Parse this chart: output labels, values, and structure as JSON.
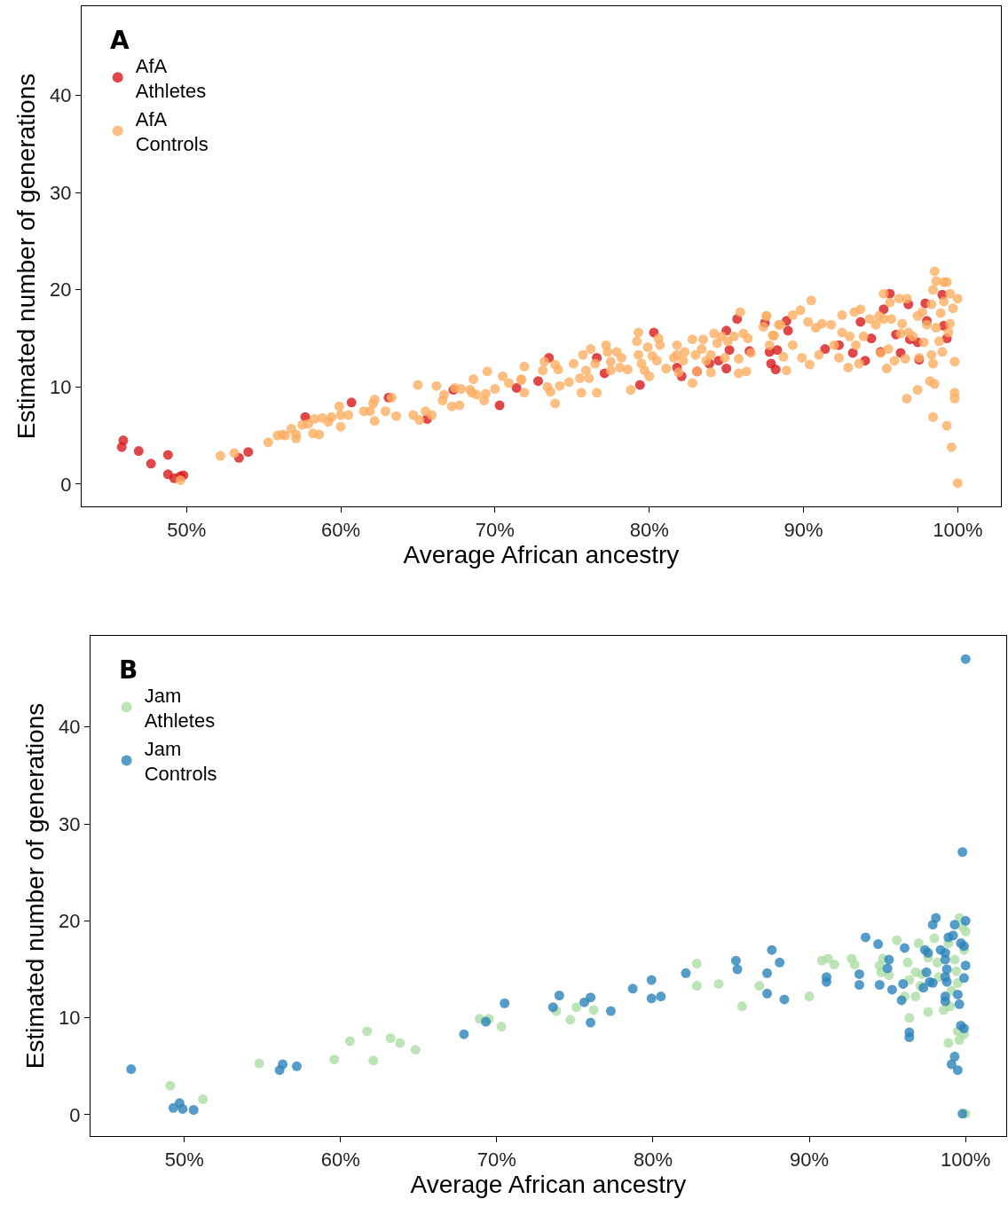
{
  "chart_data": [
    {
      "type": "scatter",
      "title": "A",
      "xlabel": "Average African ancestry",
      "ylabel": "Estimated number of generations",
      "legend": "top left",
      "marker": "circle",
      "xlim": [
        43.2,
        102.8
      ],
      "ylim": [
        -2.3,
        49.2
      ],
      "xticks": [
        {
          "value": 50,
          "label": "50%"
        },
        {
          "value": 60,
          "label": "60%"
        },
        {
          "value": 70,
          "label": "70%"
        },
        {
          "value": 80,
          "label": "80%"
        },
        {
          "value": 90,
          "label": "90%"
        },
        {
          "value": 100,
          "label": "100%"
        }
      ],
      "yticks": [
        0,
        10,
        20,
        30,
        40
      ],
      "series": [
        {
          "name": "AfA Athletes",
          "color": "#d7191c",
          "x": [
            45.9,
            45.8,
            46.9,
            47.7,
            48.8,
            48.8,
            49.2,
            49.6,
            49.8,
            53.4,
            54.0,
            57.7,
            60.7,
            63.1,
            65.6,
            67.3,
            70.3,
            71.4,
            73.5,
            72.8,
            76.6,
            77.1,
            79.4,
            80.3,
            81.8,
            82.1,
            83.1,
            83.9,
            84.5,
            85.0,
            85.0,
            85.2,
            85.7,
            86.5,
            87.5,
            87.8,
            87.9,
            88.2,
            88.3,
            88.9,
            89.0,
            91.4,
            92.3,
            93.2,
            93.7,
            94.0,
            94.4,
            95.0,
            95.2,
            95.6,
            96.0,
            96.3,
            96.8,
            96.9,
            97.4,
            97.5,
            97.9,
            98.0,
            99.0,
            99.1,
            99.3
          ],
          "values": [
            4.5,
            3.8,
            3.4,
            2.1,
            3.0,
            1.0,
            0.6,
            0.8,
            0.9,
            2.7,
            3.3,
            6.9,
            8.4,
            8.9,
            6.7,
            9.7,
            8.1,
            9.9,
            13.0,
            10.6,
            13.0,
            11.4,
            10.2,
            15.6,
            12.0,
            11.1,
            11.6,
            12.4,
            12.7,
            15.8,
            11.9,
            13.8,
            17.0,
            13.7,
            16.6,
            13.6,
            12.4,
            11.8,
            13.8,
            16.8,
            15.8,
            13.9,
            14.3,
            13.5,
            16.7,
            12.7,
            15.0,
            13.6,
            18.0,
            19.6,
            15.4,
            13.5,
            18.5,
            14.9,
            14.6,
            12.8,
            18.6,
            16.8,
            19.5,
            16.3,
            15.0
          ]
        },
        {
          "name": "AfA Controls",
          "color": "#fdae61",
          "x": [
            49.6,
            52.2,
            53.1,
            55.3,
            55.9,
            56.2,
            56.4,
            56.8,
            57.1,
            57.1,
            57.5,
            57.9,
            58.2,
            58.6,
            58.3,
            58.8,
            59.2,
            59.4,
            59.9,
            60.0,
            60.0,
            60.5,
            61.5,
            61.9,
            62.1,
            62.2,
            62.2,
            62.9,
            63.3,
            63.6,
            64.7,
            65.0,
            65.1,
            65.5,
            65.9,
            66.2,
            66.6,
            66.7,
            67.2,
            67.7,
            67.4,
            67.8,
            68.4,
            68.5,
            68.6,
            68.8,
            69.3,
            69.4,
            69.5,
            70.0,
            70.5,
            70.9,
            71.7,
            71.9,
            71.9,
            71.7,
            73.2,
            73.1,
            73.9,
            74.1,
            73.4,
            73.6,
            73.9,
            74.2,
            74.8,
            75.1,
            75.5,
            75.6,
            75.7,
            75.9,
            76.1,
            76.2,
            76.5,
            76.6,
            77.2,
            77.3,
            77.5,
            77.5,
            77.9,
            78.1,
            78.2,
            78.6,
            78.8,
            79.2,
            79.3,
            79.3,
            79.5,
            79.7,
            79.9,
            80.0,
            80.2,
            80.5,
            80.6,
            80.7,
            81.1,
            81.6,
            81.8,
            81.8,
            81.9,
            82.2,
            82.3,
            82.8,
            82.8,
            83.0,
            83.1,
            83.4,
            83.5,
            83.7,
            84.0,
            84.0,
            84.2,
            84.4,
            84.7,
            84.9,
            85.1,
            85.5,
            85.8,
            85.8,
            85.9,
            86.1,
            86.3,
            86.4,
            86.6,
            87.4,
            87.6,
            87.8,
            88.1,
            88.4,
            90.5,
            87.6,
            88.5,
            89.3,
            89.8,
            88.0,
            88.7,
            88.9,
            90.4,
            89.3,
            89.9,
            90.3,
            90.8,
            91.2,
            91.0,
            91.8,
            92.0,
            92.3,
            92.5,
            92.5,
            92.9,
            93.0,
            93.3,
            93.4,
            93.7,
            93.6,
            93.9,
            94.3,
            94.7,
            94.9,
            95.0,
            95.2,
            95.2,
            95.4,
            95.5,
            95.6,
            95.7,
            95.9,
            96.2,
            96.3,
            96.4,
            96.6,
            96.7,
            96.7,
            96.8,
            97.1,
            97.4,
            97.4,
            97.5,
            97.7,
            97.8,
            98.0,
            98.2,
            98.3,
            98.3,
            98.4,
            98.4,
            98.4,
            98.5,
            98.5,
            98.6,
            98.6,
            98.8,
            98.9,
            99.0,
            99.1,
            99.1,
            99.3,
            99.3,
            99.4,
            99.5,
            99.5,
            99.6,
            99.7,
            99.8,
            99.8,
            99.8,
            100.0,
            100.0
          ],
          "values": [
            0.4,
            2.9,
            3.2,
            4.3,
            5.0,
            5.1,
            5.0,
            5.7,
            5.1,
            4.7,
            6.1,
            6.2,
            5.2,
            5.1,
            6.7,
            6.8,
            6.4,
            6.9,
            8.0,
            7.1,
            5.9,
            7.1,
            7.5,
            7.5,
            8.3,
            8.7,
            6.5,
            7.5,
            8.9,
            7.0,
            7.1,
            10.2,
            6.6,
            7.5,
            7.1,
            10.1,
            8.6,
            9.2,
            8.0,
            8.1,
            9.9,
            9.8,
            9.7,
            9.4,
            10.8,
            9.2,
            8.6,
            9.3,
            11.6,
            9.8,
            11.1,
            10.4,
            10.7,
            12.1,
            9.4,
            10.8,
            12.6,
            11.7,
            12.3,
            11.8,
            10.0,
            9.5,
            8.3,
            10.1,
            10.5,
            12.4,
            10.9,
            9.4,
            13.3,
            11.7,
            10.9,
            13.9,
            12.4,
            9.4,
            14.3,
            13.6,
            12.6,
            11.7,
            13.6,
            12.0,
            13.0,
            11.8,
            9.7,
            14.7,
            15.6,
            13.3,
            12.4,
            11.7,
            14.1,
            11.1,
            13.2,
            12.7,
            15.0,
            14.3,
            11.9,
            13.0,
            14.3,
            13.3,
            11.5,
            12.7,
            13.6,
            14.9,
            10.4,
            13.3,
            11.6,
            13.9,
            14.9,
            12.7,
            13.3,
            11.5,
            15.5,
            14.5,
            15.2,
            13.0,
            14.7,
            15.2,
            11.4,
            12.9,
            17.7,
            15.5,
            11.6,
            15.0,
            13.5,
            16.2,
            17.3,
            14.3,
            15.3,
            16.4,
            18.9,
            17.3,
            16.4,
            17.4,
            17.9,
            15.3,
            13.1,
            11.7,
            12.3,
            14.3,
            13.0,
            16.7,
            16.1,
            16.5,
            13.3,
            16.4,
            14.3,
            13.0,
            17.4,
            15.6,
            12.0,
            15.2,
            17.7,
            14.3,
            18.0,
            12.4,
            15.2,
            17.0,
            16.4,
            17.3,
            13.5,
            19.6,
            17.0,
            11.9,
            13.9,
            18.7,
            17.0,
            12.7,
            19.1,
            15.5,
            16.5,
            12.9,
            19.1,
            8.8,
            15.6,
            15.2,
            17.3,
            9.7,
            13.0,
            17.7,
            14.6,
            16.4,
            10.6,
            13.3,
            18.5,
            6.9,
            20.0,
            12.4,
            10.3,
            21.9,
            20.9,
            16.1,
            14.7,
            17.6,
            13.6,
            20.8,
            18.8,
            20.8,
            6.0,
            15.6,
            19.6,
            16.5,
            3.8,
            18.1,
            9.4,
            8.8,
            12.6,
            19.1,
            0.1
          ]
        }
      ]
    },
    {
      "type": "scatter",
      "title": "B",
      "xlabel": "Average African ancestry",
      "ylabel": "Estimated number of generations",
      "legend": "top left",
      "marker": "circle",
      "xlim": [
        44.0,
        102.6
      ],
      "ylim": [
        -2.2,
        49.4
      ],
      "xticks": [
        {
          "value": 50,
          "label": "50%"
        },
        {
          "value": 60,
          "label": "60%"
        },
        {
          "value": 70,
          "label": "70%"
        },
        {
          "value": 80,
          "label": "80%"
        },
        {
          "value": 90,
          "label": "90%"
        },
        {
          "value": 100,
          "label": "100%"
        }
      ],
      "yticks": [
        0,
        10,
        20,
        30,
        40
      ],
      "series": [
        {
          "name": "Jam Athletes",
          "color": "#abdda4",
          "x": [
            49.1,
            51.2,
            54.8,
            59.6,
            60.6,
            61.7,
            62.1,
            63.2,
            63.8,
            64.8,
            68.9,
            69.5,
            70.3,
            73.8,
            74.7,
            75.1,
            76.2,
            82.8,
            82.8,
            84.2,
            85.7,
            86.8,
            90.0,
            90.8,
            91.2,
            91.6,
            92.7,
            92.9,
            95.6,
            94.7,
            94.5,
            94.6,
            95.1,
            96.3,
            96.4,
            96.1,
            96.8,
            96.4,
            96.8,
            97.0,
            97.2,
            97.1,
            97.6,
            98.0,
            97.6,
            98.2,
            98.3,
            98.6,
            98.9,
            99.0,
            98.9,
            99.1,
            99.3,
            99.4,
            99.5,
            99.5,
            99.6,
            99.6,
            99.8,
            100.0,
            99.9,
            99.9,
            100.0
          ],
          "values": [
            3.0,
            1.6,
            5.3,
            5.7,
            7.6,
            8.6,
            5.6,
            7.9,
            7.4,
            6.7,
            9.9,
            9.9,
            9.1,
            10.7,
            9.8,
            11.1,
            10.8,
            15.6,
            13.3,
            13.5,
            11.2,
            13.3,
            12.2,
            15.9,
            16.1,
            15.5,
            16.1,
            15.5,
            18.0,
            16.1,
            15.4,
            14.7,
            14.4,
            15.7,
            13.9,
            12.2,
            12.2,
            10.0,
            14.7,
            17.7,
            14.5,
            13.3,
            16.2,
            18.2,
            10.6,
            15.7,
            14.2,
            10.8,
            17.7,
            11.2,
            7.4,
            12.8,
            16.0,
            14.8,
            13.6,
            8.6,
            7.7,
            20.3,
            19.4,
            18.9,
            17.0,
            8.3,
            0.1
          ]
        },
        {
          "name": "Jam Controls",
          "color": "#2b83ba",
          "x": [
            46.6,
            49.3,
            49.7,
            49.9,
            50.6,
            56.1,
            56.3,
            57.2,
            67.9,
            69.3,
            70.5,
            73.6,
            74.0,
            75.6,
            76.0,
            76.0,
            77.3,
            78.7,
            79.9,
            79.9,
            80.5,
            82.1,
            85.3,
            85.4,
            87.6,
            88.1,
            87.3,
            87.3,
            88.4,
            91.1,
            91.1,
            93.2,
            93.2,
            93.6,
            94.4,
            94.5,
            95.1,
            95.0,
            95.3,
            96.1,
            96.0,
            95.9,
            96.4,
            96.4,
            97.4,
            97.6,
            97.9,
            98.1,
            97.5,
            97.7,
            97.3,
            97.9,
            98.4,
            98.7,
            98.9,
            99.2,
            99.3,
            98.7,
            98.8,
            98.7,
            98.8,
            98.7,
            98.7,
            99.5,
            99.6,
            99.7,
            99.9,
            100.0,
            99.9,
            100.0,
            99.7,
            99.9,
            99.3,
            99.1,
            99.5,
            99.8,
            100.0,
            99.8
          ],
          "values": [
            4.7,
            0.7,
            1.2,
            0.6,
            0.5,
            4.6,
            5.2,
            5.0,
            8.3,
            9.6,
            11.5,
            11.1,
            12.3,
            11.6,
            12.1,
            9.5,
            10.7,
            13.0,
            13.9,
            12.0,
            12.2,
            14.6,
            15.9,
            15.0,
            17.0,
            15.7,
            14.6,
            12.5,
            11.9,
            14.2,
            13.7,
            14.5,
            13.4,
            18.3,
            17.6,
            13.4,
            16.0,
            15.1,
            12.9,
            17.2,
            13.5,
            11.8,
            8.5,
            8.0,
            17.0,
            16.7,
            19.6,
            20.3,
            14.7,
            13.7,
            13.1,
            13.6,
            17.0,
            16.7,
            18.3,
            18.5,
            19.6,
            16.0,
            15.0,
            14.2,
            13.7,
            12.2,
            11.7,
            12.4,
            11.4,
            17.7,
            17.4,
            15.4,
            14.1,
            20.0,
            9.2,
            8.9,
            6.0,
            5.2,
            4.6,
            0.1,
            47.0,
            27.1
          ]
        }
      ]
    }
  ]
}
